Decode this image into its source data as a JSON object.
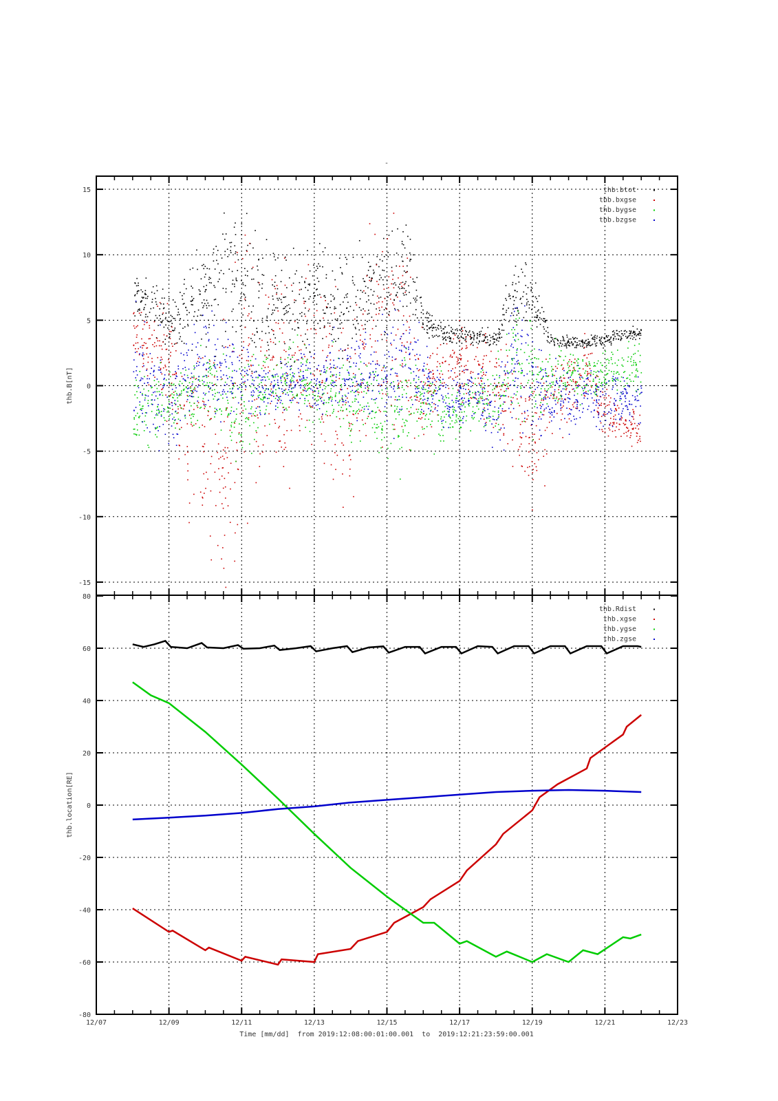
{
  "title": "-",
  "chart_data": [
    {
      "type": "scatter",
      "ylabel": "thb.B[nT]",
      "ylim": [
        -16,
        16
      ],
      "yticks": [
        15,
        10,
        5,
        0,
        -5,
        -10,
        -15
      ],
      "grid": true,
      "legend_position": "top-right",
      "x_note": "x in days after 12/07 00:00",
      "series": [
        {
          "name": "thb.btot",
          "color": "#000000",
          "x": [
            1,
            1.5,
            2,
            2.5,
            3,
            3.5,
            4,
            4.5,
            5,
            5.5,
            6,
            6.5,
            7,
            7.5,
            8,
            8.5,
            9,
            9.5,
            10,
            10.5,
            11,
            11.5,
            12,
            12.5,
            13,
            13.5,
            14,
            14.5,
            15
          ],
          "mean": [
            7,
            6,
            5,
            6,
            7,
            9,
            8,
            7,
            6,
            6,
            7,
            6,
            6,
            7,
            7,
            9,
            5,
            4,
            3.8,
            3.8,
            3.5,
            7.5,
            6.5,
            3.6,
            3.4,
            3.3,
            3.5,
            4,
            4
          ],
          "spread": [
            1,
            1.5,
            1.5,
            2,
            3,
            4,
            3.5,
            4,
            3,
            3,
            3,
            2.5,
            3,
            2.5,
            3,
            3,
            1,
            0.6,
            0.5,
            0.5,
            0.5,
            2,
            1.5,
            0.4,
            0.4,
            0.4,
            0.4,
            0.4,
            0.4
          ]
        },
        {
          "name": "thb.bxgse",
          "color": "#cc0000",
          "x": [
            1,
            1.5,
            2,
            2.5,
            3,
            3.5,
            4,
            4.5,
            5,
            5.5,
            6,
            6.5,
            7,
            7.5,
            8,
            8.5,
            9,
            9.5,
            10,
            10.5,
            11,
            11.5,
            12,
            12.5,
            13,
            13.5,
            14,
            14.5,
            15
          ],
          "mean": [
            4,
            3,
            2,
            -3,
            -4,
            -6,
            0,
            1,
            2,
            1,
            3,
            0,
            -2,
            3,
            4,
            3,
            -1,
            1,
            2,
            1,
            0,
            -2,
            -4,
            -1,
            0,
            1,
            -2,
            -3,
            -3
          ],
          "spread": [
            2,
            2,
            3,
            5,
            6,
            7,
            8,
            7,
            6,
            5,
            5,
            6,
            5,
            6,
            6,
            5,
            3,
            2,
            2,
            2,
            3,
            4,
            4,
            3,
            2,
            2,
            1.5,
            1,
            1
          ]
        },
        {
          "name": "thb.bygse",
          "color": "#00cc00",
          "x": [
            1,
            1.5,
            2,
            2.5,
            3,
            3.5,
            4,
            4.5,
            5,
            5.5,
            6,
            6.5,
            7,
            7.5,
            8,
            8.5,
            9,
            9.5,
            10,
            10.5,
            11,
            11.5,
            12,
            12.5,
            13,
            13.5,
            14,
            14.5,
            15
          ],
          "mean": [
            -2,
            -2,
            -1,
            -1,
            0,
            -1,
            -2,
            0,
            0,
            1,
            -1,
            0,
            -1,
            -1,
            -3,
            -1,
            -1,
            -2,
            -2,
            -1,
            -1,
            2,
            0,
            1,
            1,
            1,
            1,
            1,
            2
          ],
          "spread": [
            2,
            2,
            2,
            2,
            2,
            3,
            3,
            2,
            2,
            2,
            2,
            2,
            2,
            2,
            3,
            3,
            2,
            2,
            1.5,
            1.5,
            2,
            3,
            3,
            2,
            1.5,
            1.5,
            1.5,
            1.5,
            2
          ]
        },
        {
          "name": "thb.bzgse",
          "color": "#0000cc",
          "x": [
            1,
            1.5,
            2,
            2.5,
            3,
            3.5,
            4,
            4.5,
            5,
            5.5,
            6,
            6.5,
            7,
            7.5,
            8,
            8.5,
            9,
            9.5,
            10,
            10.5,
            11,
            11.5,
            12,
            12.5,
            13,
            13.5,
            14,
            14.5,
            15
          ],
          "mean": [
            1,
            0,
            -2,
            1,
            2,
            1,
            1,
            0,
            0,
            0,
            1,
            1,
            1,
            1,
            1,
            2,
            0,
            -1,
            -1,
            -1,
            -2,
            3,
            0,
            -1,
            -1,
            -1,
            -1,
            -1,
            -1
          ],
          "spread": [
            3,
            3,
            3,
            2,
            3,
            3,
            2,
            1.5,
            1.5,
            1.5,
            2,
            2,
            2,
            3,
            3,
            4,
            2,
            1.5,
            1.5,
            1.5,
            2,
            4,
            3,
            2,
            2,
            1.5,
            1.5,
            1.5,
            1.5
          ]
        }
      ]
    },
    {
      "type": "line",
      "ylabel": "thb.location[RE]",
      "xlabel": "Time [mm/dd]  from 2019:12:08:00:01:00.001  to  2019:12:21:23:59:00.001",
      "ylim": [
        -80,
        80
      ],
      "yticks": [
        80,
        60,
        40,
        20,
        0,
        -20,
        -40,
        -60,
        -80
      ],
      "xlim": [
        0,
        16
      ],
      "xticks": [
        0,
        2,
        4,
        6,
        8,
        10,
        12,
        14,
        16
      ],
      "xticklabels": [
        "12/07",
        "12/09",
        "12/11",
        "12/13",
        "12/15",
        "12/17",
        "12/19",
        "12/21",
        "12/23"
      ],
      "grid": true,
      "legend_position": "top-right",
      "series": [
        {
          "name": "thb.Rdist",
          "color": "#000000",
          "x": [
            1,
            1.3,
            1.6,
            1.9,
            2.05,
            2.5,
            2.9,
            3.05,
            3.5,
            3.9,
            4.05,
            4.5,
            4.9,
            5.05,
            5.5,
            5.9,
            6.05,
            6.5,
            6.9,
            7.05,
            7.5,
            7.9,
            8.05,
            8.5,
            8.9,
            9.05,
            9.5,
            9.9,
            10.05,
            10.5,
            10.9,
            11.05,
            11.5,
            11.9,
            12.05,
            12.5,
            12.9,
            13.05,
            13.5,
            13.9,
            14.05,
            14.5,
            14.9,
            15
          ],
          "y": [
            61.5,
            60.5,
            61.5,
            62.8,
            60.5,
            60,
            62,
            60.3,
            60,
            61.2,
            59.8,
            60,
            61,
            59.3,
            60,
            60.8,
            58.8,
            60,
            60.8,
            58.5,
            60.3,
            60.7,
            58.3,
            60.5,
            60.5,
            58,
            60.5,
            60.5,
            58,
            60.8,
            60.5,
            58,
            60.8,
            60.8,
            58,
            60.8,
            60.8,
            58,
            60.8,
            60.8,
            58,
            60.8,
            60.8,
            60.5
          ]
        },
        {
          "name": "thb.xgse",
          "color": "#cc0000",
          "x": [
            1,
            2,
            2.1,
            3,
            3.1,
            4,
            4.1,
            5,
            5.1,
            6,
            6.1,
            7,
            7.2,
            8,
            8.2,
            9,
            9.2,
            10,
            10.2,
            11,
            11.2,
            12,
            12.2,
            12.7,
            13.5,
            13.6,
            14.5,
            14.6,
            15
          ],
          "y": [
            -39.5,
            -48.5,
            -48,
            -55.5,
            -54.5,
            -59.5,
            -58,
            -61,
            -59,
            -60,
            -57,
            -55,
            -52,
            -48.5,
            -45,
            -39,
            -36,
            -29,
            -25,
            -15,
            -11,
            -2,
            3,
            8,
            14,
            18,
            27,
            30,
            34.5
          ]
        },
        {
          "name": "thb.ygse",
          "color": "#00cc00",
          "x": [
            1,
            1.5,
            2,
            3,
            4,
            5,
            6,
            7,
            8,
            9,
            9.3,
            10,
            10.2,
            11,
            11.3,
            12,
            12.4,
            13,
            13.4,
            13.8,
            14.5,
            14.7,
            15
          ],
          "y": [
            47,
            42,
            39,
            28,
            15.5,
            2.5,
            -11,
            -24,
            -35,
            -45,
            -45,
            -53,
            -52,
            -58,
            -56,
            -60,
            -57,
            -60,
            -55.5,
            -57,
            -50.5,
            -51,
            -49.5
          ]
        },
        {
          "name": "thb.zgse",
          "color": "#0000cc",
          "x": [
            1,
            2,
            3,
            4,
            5,
            6,
            7,
            8,
            9,
            10,
            11,
            12,
            13,
            14,
            15
          ],
          "y": [
            -5.5,
            -4.8,
            -4,
            -3,
            -1.5,
            -0.5,
            1,
            2,
            3,
            4,
            5,
            5.5,
            5.8,
            5.5,
            5
          ]
        }
      ]
    }
  ]
}
